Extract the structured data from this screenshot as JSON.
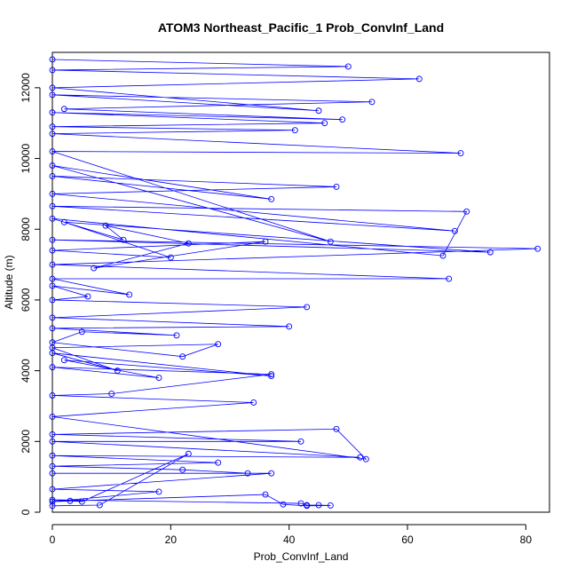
{
  "chart_data": {
    "type": "scatter",
    "title": "ATOM3 Northeast_Pacific_1 Prob_ConvInf_Land",
    "xlabel": "Prob_ConvInf_Land",
    "ylabel": "Altitude (m)",
    "xlim": [
      0,
      84
    ],
    "ylim": [
      0,
      13000
    ],
    "xticks": [
      0,
      20,
      40,
      60,
      80
    ],
    "yticks": [
      0,
      2000,
      4000,
      6000,
      8000,
      10000,
      12000
    ],
    "grid": false,
    "legend": "none",
    "series_color": "#0000ff",
    "marker": "open-circle",
    "connect_points": true,
    "series": [
      {
        "points": [
          [
            0,
            180
          ],
          [
            8,
            200
          ],
          [
            23,
            1650
          ],
          [
            5,
            300
          ],
          [
            3,
            320
          ],
          [
            0,
            350
          ],
          [
            42,
            250
          ],
          [
            43,
            200
          ],
          [
            45,
            200
          ],
          [
            47,
            190
          ],
          [
            43,
            180
          ],
          [
            39,
            220
          ],
          [
            36,
            500
          ],
          [
            0,
            300
          ],
          [
            18,
            580
          ],
          [
            0,
            650
          ],
          [
            37,
            1100
          ],
          [
            0,
            1100
          ],
          [
            33,
            1100
          ],
          [
            22,
            1200
          ],
          [
            0,
            1300
          ],
          [
            28,
            1400
          ],
          [
            0,
            1600
          ],
          [
            52,
            1550
          ],
          [
            0,
            2000
          ],
          [
            42,
            2000
          ],
          [
            0,
            2200
          ],
          [
            48,
            2350
          ],
          [
            53,
            1500
          ],
          [
            0,
            2700
          ],
          [
            34,
            3100
          ],
          [
            0,
            3300
          ],
          [
            10,
            3350
          ],
          [
            37,
            3900
          ],
          [
            0,
            4100
          ],
          [
            18,
            3800
          ],
          [
            2,
            4300
          ],
          [
            37,
            3850
          ],
          [
            0,
            4500
          ],
          [
            11,
            4000
          ],
          [
            0,
            4650
          ],
          [
            28,
            4750
          ],
          [
            22,
            4400
          ],
          [
            0,
            4800
          ],
          [
            5,
            5100
          ],
          [
            21,
            5000
          ],
          [
            0,
            5200
          ],
          [
            40,
            5250
          ],
          [
            0,
            5500
          ],
          [
            43,
            5800
          ],
          [
            0,
            6000
          ],
          [
            6,
            6100
          ],
          [
            0,
            6400
          ],
          [
            13,
            6150
          ],
          [
            0,
            6600
          ],
          [
            67,
            6600
          ],
          [
            0,
            7000
          ],
          [
            82,
            7450
          ],
          [
            0,
            7700
          ],
          [
            74,
            7350
          ],
          [
            2,
            8200
          ],
          [
            20,
            7200
          ],
          [
            0,
            7400
          ],
          [
            36,
            7650
          ],
          [
            7,
            6900
          ],
          [
            23,
            7600
          ],
          [
            9,
            8100
          ],
          [
            12,
            7700
          ],
          [
            0,
            8300
          ],
          [
            66,
            7250
          ],
          [
            70,
            8500
          ],
          [
            0,
            8650
          ],
          [
            68,
            7950
          ],
          [
            0,
            9000
          ],
          [
            48,
            9200
          ],
          [
            0,
            9500
          ],
          [
            37,
            8850
          ],
          [
            0,
            9800
          ],
          [
            47,
            7650
          ],
          [
            0,
            10200
          ],
          [
            69,
            10150
          ],
          [
            0,
            10700
          ],
          [
            41,
            10800
          ],
          [
            0,
            10900
          ],
          [
            46,
            11000
          ],
          [
            0,
            11300
          ],
          [
            49,
            11100
          ],
          [
            2,
            11400
          ],
          [
            54,
            11600
          ],
          [
            0,
            11800
          ],
          [
            45,
            11350
          ],
          [
            0,
            12000
          ],
          [
            62,
            12250
          ],
          [
            0,
            12500
          ],
          [
            50,
            12600
          ],
          [
            0,
            12800
          ]
        ]
      }
    ]
  }
}
